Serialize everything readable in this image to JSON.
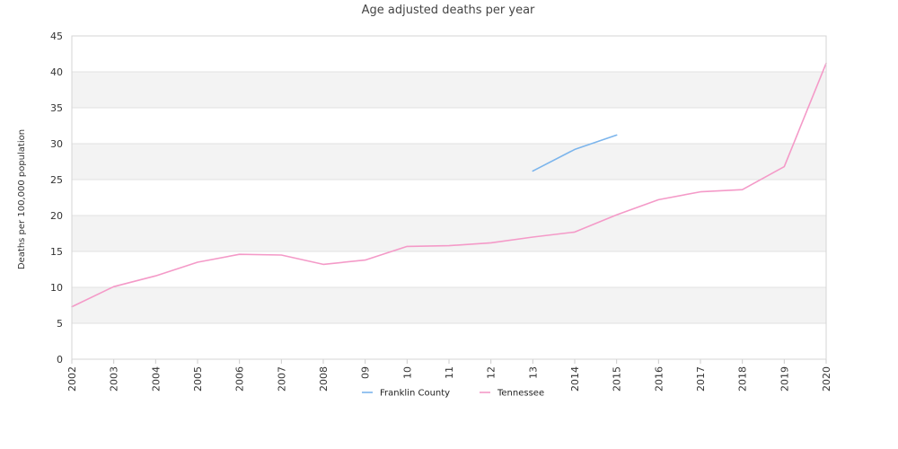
{
  "chart_data": {
    "type": "line",
    "title": "Age adjusted deaths per year",
    "xlabel": "",
    "ylabel": "Deaths per 100,000 population",
    "categories": [
      "2002",
      "2003",
      "2004",
      "2005",
      "2006",
      "2007",
      "2008",
      "09",
      "10",
      "11",
      "12",
      "13",
      "2014",
      "2015",
      "2016",
      "2017",
      "2018",
      "2019",
      "2020"
    ],
    "ylim": [
      0,
      45
    ],
    "yticks": [
      0,
      5,
      10,
      15,
      20,
      25,
      30,
      35,
      40,
      45
    ],
    "grid": "horizontal bands",
    "legend_position": "bottom-center",
    "series": [
      {
        "name": "Franklin County",
        "color": "#7cb5ec",
        "values": [
          null,
          null,
          null,
          null,
          null,
          null,
          null,
          null,
          null,
          null,
          null,
          26.2,
          29.2,
          31.2,
          null,
          null,
          null,
          null,
          null
        ]
      },
      {
        "name": "Tennessee",
        "color": "#f49ac8",
        "values": [
          7.3,
          10.1,
          11.6,
          13.5,
          14.6,
          14.5,
          13.2,
          13.8,
          15.7,
          15.8,
          16.2,
          17.0,
          17.7,
          20.1,
          22.2,
          23.3,
          23.6,
          26.8,
          41.2
        ]
      }
    ]
  }
}
